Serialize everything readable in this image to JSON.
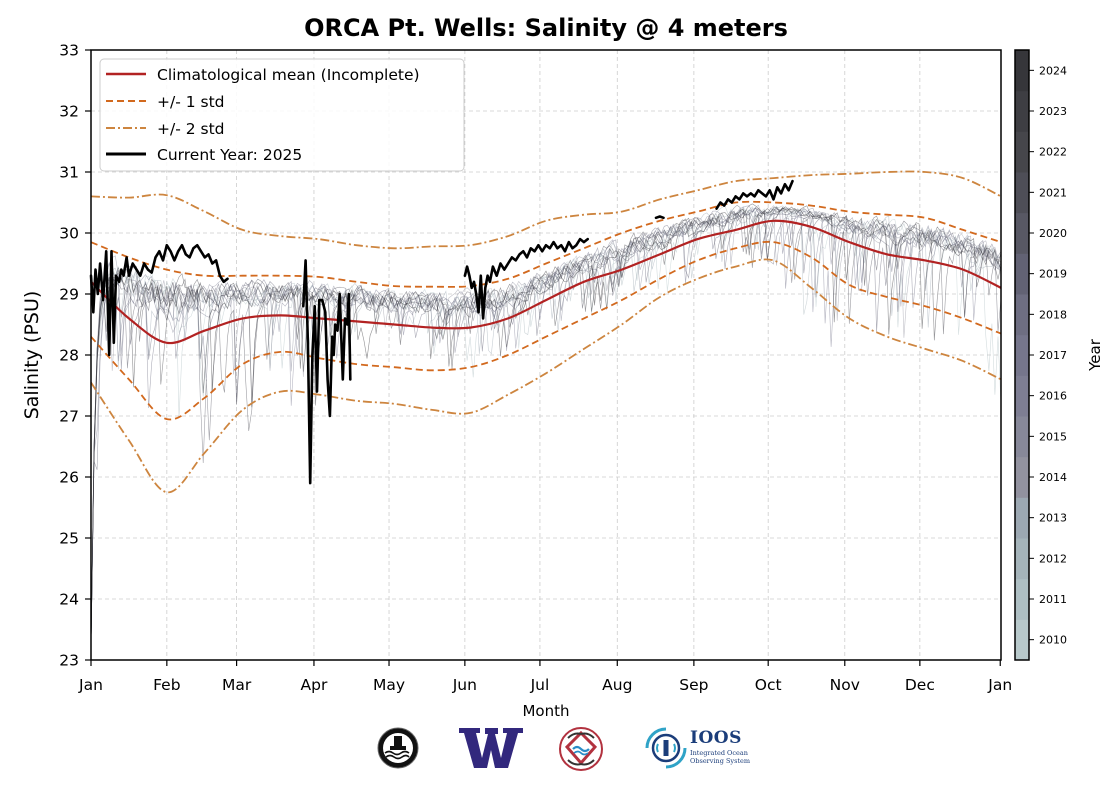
{
  "chart_data": {
    "type": "line",
    "title": "ORCA Pt. Wells: Salinity @ 4 meters",
    "xlabel": "Month",
    "ylabel": "Salinity (PSU)",
    "ylim": [
      23,
      33
    ],
    "xlim": [
      0,
      12
    ],
    "yticks": [
      23,
      24,
      25,
      26,
      27,
      28,
      29,
      30,
      31,
      32,
      33
    ],
    "xticks": [
      {
        "pos": 0,
        "label": "Jan"
      },
      {
        "pos": 1,
        "label": "Feb"
      },
      {
        "pos": 1.92,
        "label": "Mar"
      },
      {
        "pos": 2.94,
        "label": "Apr"
      },
      {
        "pos": 3.93,
        "label": "May"
      },
      {
        "pos": 4.93,
        "label": "Jun"
      },
      {
        "pos": 5.92,
        "label": "Jul"
      },
      {
        "pos": 6.94,
        "label": "Aug"
      },
      {
        "pos": 7.95,
        "label": "Sep"
      },
      {
        "pos": 8.93,
        "label": "Oct"
      },
      {
        "pos": 9.94,
        "label": "Nov"
      },
      {
        "pos": 10.93,
        "label": "Dec"
      },
      {
        "pos": 11.99,
        "label": "Jan"
      }
    ],
    "grid": true,
    "legend_position": "top-left",
    "legend": [
      {
        "label": "Climatological mean (Incomplete)",
        "style": "solid",
        "color": "#b22222"
      },
      {
        "label": "+/- 1 std",
        "style": "dashed",
        "color": "#d2691e"
      },
      {
        "label": "+/- 2 std",
        "style": "dashdot",
        "color": "#cd853f"
      },
      {
        "label": "Current Year: 2025",
        "style": "solid",
        "color": "#000000"
      }
    ],
    "x": [
      0,
      0.5,
      1,
      1.5,
      2,
      2.5,
      3,
      3.5,
      4,
      4.5,
      5,
      5.5,
      6,
      6.5,
      7,
      7.5,
      8,
      8.5,
      9,
      9.5,
      10,
      10.5,
      11,
      11.5,
      12
    ],
    "series": [
      {
        "name": "Climatological mean",
        "role": "mean",
        "color": "#b22222",
        "values": [
          29.2,
          28.6,
          28.2,
          28.4,
          28.6,
          28.65,
          28.6,
          28.55,
          28.5,
          28.45,
          28.45,
          28.6,
          28.9,
          29.2,
          29.4,
          29.65,
          29.9,
          30.05,
          30.2,
          30.1,
          29.85,
          29.65,
          29.55,
          29.4,
          29.1
        ]
      },
      {
        "name": "+1 std",
        "role": "upper1",
        "color": "#d2691e",
        "values": [
          29.85,
          29.6,
          29.4,
          29.3,
          29.3,
          29.3,
          29.28,
          29.2,
          29.13,
          29.12,
          29.13,
          29.25,
          29.5,
          29.75,
          30.0,
          30.2,
          30.35,
          30.5,
          30.5,
          30.45,
          30.35,
          30.3,
          30.25,
          30.05,
          29.85
        ]
      },
      {
        "name": "-1 std",
        "role": "lower1",
        "color": "#d2691e",
        "values": [
          28.3,
          27.6,
          26.95,
          27.3,
          27.85,
          28.05,
          27.95,
          27.85,
          27.8,
          27.75,
          27.8,
          28.0,
          28.3,
          28.6,
          28.9,
          29.25,
          29.55,
          29.75,
          29.85,
          29.6,
          29.15,
          28.95,
          28.8,
          28.6,
          28.35
        ]
      },
      {
        "name": "+2 std",
        "role": "upper2",
        "color": "#cd853f",
        "values": [
          30.6,
          30.58,
          30.62,
          30.35,
          30.05,
          29.95,
          29.9,
          29.8,
          29.75,
          29.78,
          29.8,
          29.95,
          30.2,
          30.3,
          30.35,
          30.55,
          30.7,
          30.85,
          30.9,
          30.95,
          30.97,
          31.0,
          31.0,
          30.9,
          30.6
        ]
      },
      {
        "name": "-2 std",
        "role": "lower2",
        "color": "#cd853f",
        "values": [
          27.55,
          26.6,
          25.75,
          26.4,
          27.1,
          27.4,
          27.35,
          27.25,
          27.2,
          27.1,
          27.05,
          27.35,
          27.7,
          28.1,
          28.5,
          28.95,
          29.25,
          29.45,
          29.55,
          29.1,
          28.6,
          28.3,
          28.1,
          27.9,
          27.6
        ]
      }
    ],
    "current_year": {
      "name": "Current Year: 2025",
      "color": "#000000",
      "segments": [
        {
          "x": [
            0,
            0.03,
            0.06,
            0.09,
            0.12,
            0.16,
            0.2,
            0.24,
            0.27,
            0.3,
            0.33,
            0.37,
            0.4,
            0.43,
            0.47,
            0.5,
            0.55,
            0.6,
            0.65,
            0.7,
            0.75,
            0.8,
            0.85,
            0.9,
            0.95,
            1.0,
            1.05,
            1.1,
            1.15,
            1.2,
            1.25,
            1.3,
            1.35,
            1.4,
            1.45,
            1.5,
            1.55,
            1.6,
            1.65,
            1.7,
            1.75,
            1.8
          ],
          "y": [
            29.3,
            28.7,
            29.4,
            29.0,
            29.5,
            28.9,
            29.7,
            28.0,
            29.7,
            28.2,
            29.3,
            29.2,
            29.4,
            29.3,
            29.6,
            29.3,
            29.5,
            29.4,
            29.3,
            29.5,
            29.4,
            29.35,
            29.6,
            29.7,
            29.55,
            29.8,
            29.7,
            29.55,
            29.7,
            29.8,
            29.65,
            29.6,
            29.75,
            29.8,
            29.7,
            29.6,
            29.65,
            29.5,
            29.55,
            29.3,
            29.2,
            29.25
          ]
        },
        {
          "x": [
            2.8,
            2.83,
            2.86,
            2.89,
            2.92,
            2.95,
            2.98,
            3.01,
            3.05,
            3.09,
            3.12,
            3.15,
            3.18,
            3.2,
            3.22,
            3.25,
            3.28,
            3.32,
            3.35,
            3.38,
            3.4,
            3.42
          ],
          "y": [
            28.8,
            29.55,
            28.2,
            25.9,
            28.0,
            28.8,
            27.4,
            28.9,
            28.9,
            28.7,
            27.6,
            27.0,
            28.3,
            28.0,
            28.5,
            28.4,
            29.0,
            27.6,
            28.6,
            28.5,
            29.0,
            27.6
          ]
        },
        {
          "x": [
            4.93,
            4.96,
            4.99,
            5.02,
            5.05,
            5.08,
            5.11,
            5.14,
            5.17,
            5.2,
            5.23,
            5.26,
            5.3,
            5.35,
            5.4,
            5.45,
            5.5,
            5.55,
            5.6,
            5.65,
            5.7,
            5.75,
            5.8,
            5.85,
            5.9,
            5.95,
            6.0,
            6.05,
            6.1,
            6.15,
            6.2,
            6.25,
            6.3,
            6.35,
            6.4,
            6.45,
            6.5,
            6.55
          ],
          "y": [
            29.3,
            29.45,
            29.3,
            29.1,
            29.2,
            29.0,
            28.7,
            29.3,
            28.6,
            29.1,
            29.3,
            29.2,
            29.45,
            29.3,
            29.5,
            29.4,
            29.5,
            29.6,
            29.55,
            29.65,
            29.7,
            29.6,
            29.75,
            29.7,
            29.8,
            29.7,
            29.8,
            29.75,
            29.85,
            29.75,
            29.8,
            29.7,
            29.85,
            29.75,
            29.8,
            29.9,
            29.85,
            29.9
          ]
        },
        {
          "x": [
            7.45,
            7.5,
            7.55
          ],
          "y": [
            30.25,
            30.27,
            30.25
          ]
        },
        {
          "x": [
            8.25,
            8.3,
            8.35,
            8.4,
            8.45,
            8.5,
            8.55,
            8.6,
            8.65,
            8.7,
            8.75,
            8.8,
            8.85,
            8.9,
            8.95,
            9.0,
            9.05,
            9.1,
            9.15,
            9.2,
            9.25
          ],
          "y": [
            30.4,
            30.5,
            30.45,
            30.55,
            30.5,
            30.6,
            30.55,
            30.65,
            30.6,
            30.65,
            30.6,
            30.7,
            30.65,
            30.6,
            30.7,
            30.55,
            30.75,
            30.65,
            30.8,
            30.7,
            30.85
          ]
        }
      ]
    },
    "historical_years": {
      "colorbar_label": "Year",
      "years": [
        2010,
        2011,
        2012,
        2013,
        2014,
        2015,
        2016,
        2017,
        2018,
        2019,
        2020,
        2021,
        2022,
        2023,
        2024
      ],
      "colors": [
        "#b8c9cb",
        "#aebfc3",
        "#a5b4ba",
        "#9ca8b2",
        "#92929f",
        "#878899",
        "#7e7e93",
        "#76768c",
        "#6e6e82",
        "#626274",
        "#585864",
        "#4e4e57",
        "#46464b",
        "#3e3e43",
        "#36363a"
      ]
    }
  },
  "logos": [
    {
      "name": "orca-buoy-logo"
    },
    {
      "name": "uw-w-logo",
      "text": "W"
    },
    {
      "name": "nanoos-logo"
    },
    {
      "name": "ioos-logo",
      "text": "IOOS",
      "subtext1": "Integrated Ocean",
      "subtext2": "Observing System"
    }
  ]
}
